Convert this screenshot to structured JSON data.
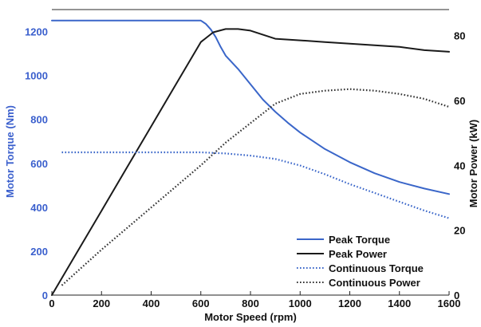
{
  "chart_data": {
    "type": "line",
    "xlabel": "Motor Speed (rpm)",
    "ylabel_left": "Motor Torque (Nm)",
    "ylabel_right": "Motor Power (kW)",
    "xlim": [
      0,
      1600
    ],
    "ylim_left": [
      0,
      1300
    ],
    "ylim_right": [
      0,
      88
    ],
    "x_ticks": [
      0,
      200,
      400,
      600,
      800,
      1000,
      1200,
      1400,
      1600
    ],
    "y_left_ticks": [
      0,
      200,
      400,
      600,
      800,
      1000,
      1200
    ],
    "y_right_ticks": [
      0,
      20,
      40,
      60,
      80
    ],
    "grid": false,
    "legend_position": "bottom-right",
    "colors": {
      "left_axis": "#3a5fcd",
      "right_axis": "#111111",
      "peak_torque": "#3a66c9",
      "peak_power": "#1a1a1a",
      "continuous_torque": "#3a66c9",
      "continuous_power": "#333333"
    },
    "series": [
      {
        "name": "Peak Torque",
        "axis": "left",
        "style": "solid",
        "x": [
          0,
          100,
          200,
          300,
          400,
          500,
          600,
          620,
          640,
          660,
          680,
          700,
          750,
          800,
          850,
          900,
          950,
          1000,
          1100,
          1200,
          1300,
          1400,
          1500,
          1600
        ],
        "y": [
          1250,
          1250,
          1250,
          1250,
          1250,
          1250,
          1250,
          1235,
          1210,
          1175,
          1130,
          1090,
          1030,
          960,
          890,
          835,
          785,
          740,
          665,
          605,
          555,
          515,
          485,
          460
        ]
      },
      {
        "name": "Peak Power",
        "axis": "right",
        "style": "solid",
        "x": [
          0,
          100,
          200,
          300,
          400,
          500,
          600,
          650,
          700,
          750,
          800,
          900,
          1000,
          1100,
          1200,
          1300,
          1400,
          1500,
          1600
        ],
        "y": [
          0,
          13,
          26,
          39,
          52,
          65,
          78,
          81,
          82,
          82,
          81.5,
          79,
          78.5,
          78,
          77.5,
          77,
          76.5,
          75.5,
          75
        ]
      },
      {
        "name": "Continuous Torque",
        "axis": "left",
        "style": "dotted",
        "x": [
          40,
          200,
          400,
          600,
          700,
          800,
          900,
          1000,
          1100,
          1200,
          1300,
          1400,
          1500,
          1600
        ],
        "y": [
          650,
          650,
          650,
          650,
          645,
          635,
          620,
          590,
          550,
          505,
          465,
          425,
          385,
          350
        ]
      },
      {
        "name": "Continuous Power",
        "axis": "right",
        "style": "dotted",
        "x": [
          40,
          200,
          400,
          600,
          700,
          800,
          900,
          1000,
          1100,
          1200,
          1300,
          1400,
          1500,
          1600
        ],
        "y": [
          3,
          14,
          27,
          40,
          47,
          53,
          59,
          62,
          63,
          63.5,
          63,
          62,
          60.5,
          58
        ]
      }
    ]
  }
}
